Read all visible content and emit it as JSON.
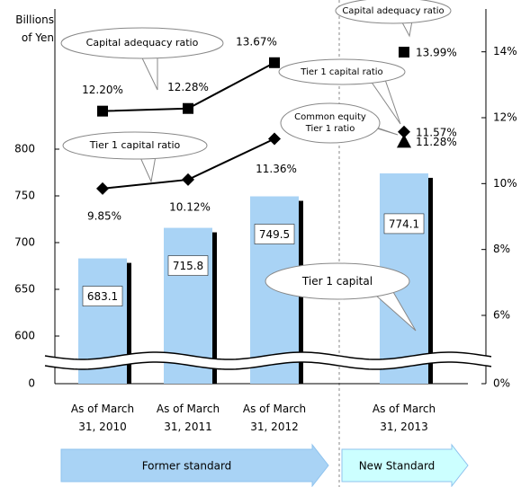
{
  "chart_data": {
    "type": "combo",
    "y_label": "Billions of Yen",
    "categories": [
      "As of March 31, 2010",
      "As of March 31, 2011",
      "As of March 31, 2012",
      "As of March 31, 2013"
    ],
    "series": [
      {
        "name": "Tier 1 capital",
        "type": "bar",
        "axis": "y",
        "color": "#a9d3f5",
        "values": [
          683.1,
          715.8,
          749.5,
          774.1
        ]
      },
      {
        "name": "Capital adequacy ratio",
        "type": "line",
        "axis": "y2",
        "marker": "square",
        "color": "#000000",
        "values": [
          12.2,
          12.28,
          13.67,
          13.99
        ],
        "value_labels": [
          "12.20%",
          "12.28%",
          "13.67%",
          "13.99%"
        ]
      },
      {
        "name": "Tier 1 capital ratio",
        "type": "line",
        "axis": "y2",
        "marker": "diamond",
        "color": "#000000",
        "values": [
          9.85,
          10.12,
          11.36,
          11.57
        ],
        "value_labels": [
          "9.85%",
          "10.12%",
          "11.36%",
          "11.57%"
        ]
      },
      {
        "name": "Common equity Tier 1 ratio",
        "type": "line",
        "axis": "y2",
        "marker": "triangle",
        "color": "#000000",
        "values": [
          null,
          null,
          null,
          11.28
        ],
        "value_labels": [
          null,
          null,
          null,
          "11.28%"
        ]
      }
    ],
    "ylim": [
      0,
      950
    ],
    "yticks": [
      0,
      600,
      650,
      700,
      750,
      800
    ],
    "y_break": [
      0,
      600
    ],
    "y2lim": [
      0,
      15.3
    ],
    "y2ticks": [
      {
        "value": 0,
        "label": "0%"
      },
      {
        "value": 6,
        "label": "6%"
      },
      {
        "value": 8,
        "label": "8%"
      },
      {
        "value": 10,
        "label": "10%"
      },
      {
        "value": 12,
        "label": "12%"
      },
      {
        "value": 14,
        "label": "14%"
      }
    ],
    "y2_break": [
      0,
      6
    ],
    "standards": [
      {
        "label": "Former standard",
        "count": 3,
        "color": "#a9d3f5"
      },
      {
        "label": "New Standard",
        "count": 1,
        "color": "#ccffff"
      }
    ]
  }
}
